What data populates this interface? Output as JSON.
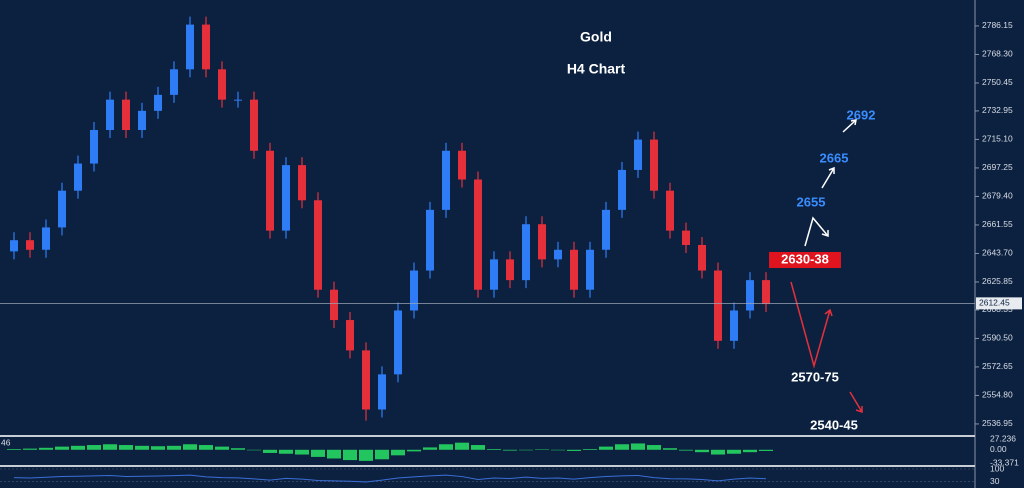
{
  "chart_data": [
    {
      "type": "candlestick",
      "title": "Gold",
      "subtitle": "H4 Chart",
      "open": [
        2645,
        2652,
        2646,
        2660,
        2683,
        2700,
        2721,
        2740,
        2721,
        2733,
        2743,
        2759,
        2787,
        2759,
        2740,
        2740,
        2708,
        2658,
        2699,
        2677,
        2621,
        2602,
        2583,
        2546,
        2568,
        2608,
        2633,
        2671,
        2708,
        2690,
        2621,
        2640,
        2627,
        2662,
        2640,
        2646,
        2621,
        2646,
        2671,
        2696,
        2715,
        2683,
        2658,
        2649,
        2633,
        2589,
        2608,
        2627
      ],
      "high": [
        2657,
        2657,
        2665,
        2688,
        2705,
        2726,
        2745,
        2745,
        2738,
        2748,
        2764,
        2792,
        2792,
        2764,
        2745,
        2745,
        2713,
        2704,
        2704,
        2682,
        2626,
        2607,
        2588,
        2573,
        2613,
        2638,
        2676,
        2713,
        2713,
        2695,
        2645,
        2645,
        2667,
        2667,
        2651,
        2651,
        2651,
        2676,
        2701,
        2720,
        2720,
        2688,
        2663,
        2654,
        2638,
        2613,
        2632,
        2632
      ],
      "low": [
        2640,
        2641,
        2641,
        2655,
        2678,
        2695,
        2716,
        2716,
        2716,
        2728,
        2738,
        2754,
        2754,
        2735,
        2735,
        2703,
        2653,
        2653,
        2672,
        2616,
        2597,
        2578,
        2539,
        2541,
        2563,
        2603,
        2628,
        2666,
        2685,
        2616,
        2616,
        2622,
        2622,
        2635,
        2635,
        2616,
        2616,
        2641,
        2666,
        2691,
        2678,
        2653,
        2644,
        2628,
        2584,
        2584,
        2603,
        2607
      ],
      "close": [
        2652,
        2646,
        2660,
        2683,
        2700,
        2721,
        2740,
        2721,
        2733,
        2743,
        2759,
        2787,
        2759,
        2740,
        2740,
        2708,
        2658,
        2699,
        2677,
        2621,
        2602,
        2583,
        2546,
        2568,
        2608,
        2633,
        2671,
        2708,
        2690,
        2621,
        2640,
        2627,
        2662,
        2640,
        2646,
        2621,
        2646,
        2671,
        2696,
        2715,
        2683,
        2658,
        2649,
        2633,
        2589,
        2608,
        2627,
        2612
      ],
      "up_color": "#2f7df6",
      "down_color": "#e5303c",
      "ylim": [
        2529.4,
        2802.4
      ],
      "yticks": [
        {
          "value": 2786.15,
          "label": "2786.15"
        },
        {
          "value": 2768.3,
          "label": "2768.30"
        },
        {
          "value": 2750.45,
          "label": "2750.45"
        },
        {
          "value": 2732.95,
          "label": "2732.95"
        },
        {
          "value": 2715.1,
          "label": "2715.10"
        },
        {
          "value": 2697.25,
          "label": "2697.25"
        },
        {
          "value": 2679.4,
          "label": "2679.40"
        },
        {
          "value": 2661.55,
          "label": "2661.55"
        },
        {
          "value": 2643.7,
          "label": "2643.70"
        },
        {
          "value": 2625.85,
          "label": "2625.85"
        },
        {
          "value": 2608.35,
          "label": "2608.35"
        },
        {
          "value": 2590.5,
          "label": "2590.50"
        },
        {
          "value": 2572.65,
          "label": "2572.65"
        },
        {
          "value": 2554.8,
          "label": "2554.80"
        },
        {
          "value": 2536.95,
          "label": "2536.95"
        }
      ],
      "current_price": {
        "value": 2612.45,
        "label": "2612.45"
      },
      "annotations": [
        "2692",
        "2665",
        "2655",
        "2630-38",
        "2570-75",
        "2540-45"
      ]
    },
    {
      "type": "bar",
      "label": "46",
      "color": "#22c55e",
      "values": [
        2,
        3,
        5,
        8,
        10,
        12,
        14,
        12,
        10,
        9,
        10,
        14,
        12,
        8,
        4,
        0,
        -8,
        -10,
        -12,
        -18,
        -22,
        -26,
        -28,
        -24,
        -14,
        -4,
        6,
        14,
        18,
        12,
        2,
        -2,
        0,
        1,
        -1,
        -3,
        2,
        8,
        14,
        16,
        12,
        4,
        -2,
        -6,
        -12,
        -10,
        -6,
        -3
      ],
      "ylim": [
        -33.371,
        27.236
      ],
      "yticks": [
        27.236,
        {
          "value": 0,
          "label": "0.00"
        },
        -33.371
      ]
    },
    {
      "type": "line",
      "color": "#3b6fd8",
      "values": [
        52,
        50,
        54,
        58,
        60,
        62,
        64,
        58,
        60,
        61,
        63,
        66,
        56,
        52,
        51,
        45,
        38,
        48,
        44,
        36,
        34,
        32,
        28,
        38,
        50,
        56,
        62,
        66,
        58,
        42,
        50,
        47,
        55,
        48,
        50,
        44,
        52,
        58,
        62,
        64,
        52,
        46,
        45,
        42,
        34,
        44,
        50,
        46
      ],
      "ylim": [
        0,
        100
      ],
      "yticks": [
        100,
        30
      ]
    }
  ]
}
